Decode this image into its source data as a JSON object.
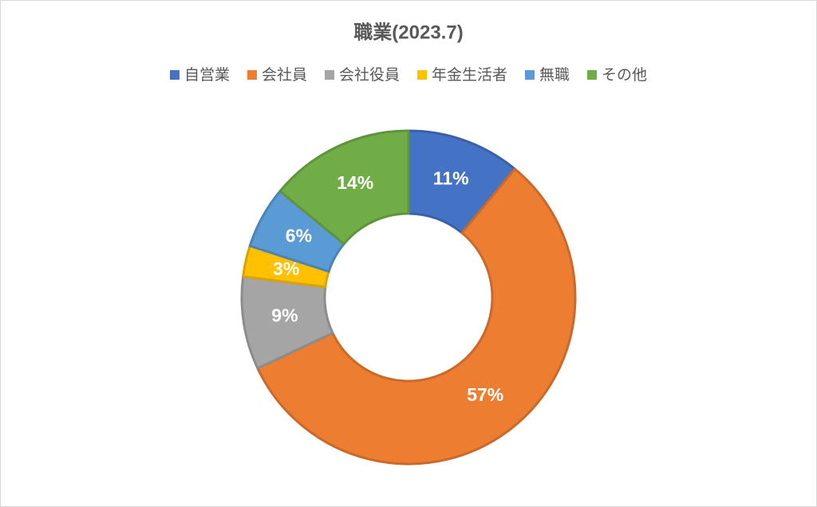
{
  "chart_data": {
    "type": "donut",
    "title": "職業(2023.7)",
    "categories": [
      "自営業",
      "会社員",
      "会社役員",
      "年金生活者",
      "無職",
      "その他"
    ],
    "values": [
      11,
      57,
      9,
      3,
      6,
      14
    ],
    "value_labels": [
      "11%",
      "57%",
      "9%",
      "3%",
      "6%",
      "14%"
    ],
    "colors": [
      "#4472c4",
      "#ed7d31",
      "#a5a5a5",
      "#ffc000",
      "#5b9bd5",
      "#70ad47"
    ],
    "legend": "top"
  }
}
